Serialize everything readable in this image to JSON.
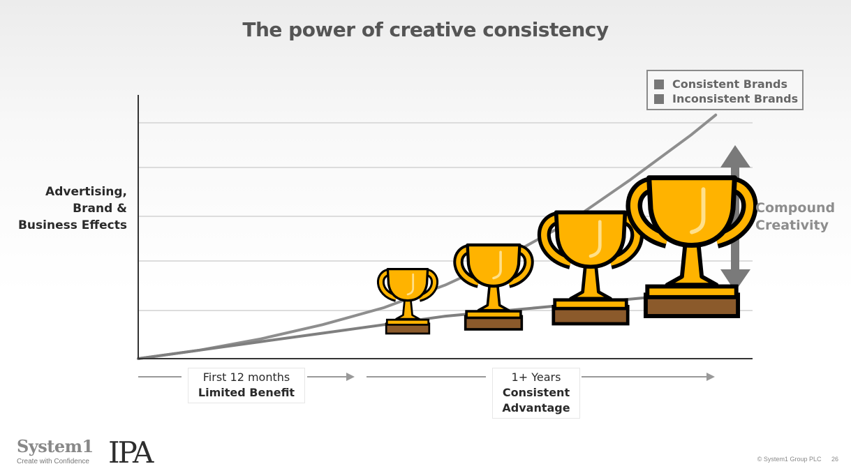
{
  "title": "The power of creative consistency",
  "ylabel_lines": [
    "Advertising,",
    "Brand &",
    "Business Effects"
  ],
  "legend": {
    "items": [
      "Consistent Brands",
      "Inconsistent Brands"
    ],
    "swatch_color": "#777777"
  },
  "annotation_lines": [
    "Compound",
    "Creativity"
  ],
  "phases": [
    {
      "line1": "First 12 months",
      "line2": "Limited Benefit"
    },
    {
      "line1": "1+ Years",
      "line2": "Consistent",
      "line3": "Advantage"
    }
  ],
  "trophy_icon": "trophy-icon",
  "trophy_count": 4,
  "colors": {
    "trophy_gold": "#FFB300",
    "trophy_base": "#8B5A2B",
    "line_gray": "#8a8a8a",
    "arrow_gray": "#7a7a7a"
  },
  "logos": {
    "system1_name": "System1",
    "system1_tagline": "Create with Confidence",
    "ipa": "IPA"
  },
  "footer": {
    "copyright": "© System1 Group PLC",
    "page": "26"
  },
  "chart_data": {
    "type": "line",
    "title": "The power of creative consistency",
    "ylabel": "Advertising, Brand & Business Effects",
    "xlabel": "",
    "grid": true,
    "legend_position": "top-right",
    "series": [
      {
        "name": "Consistent Brands",
        "x": [
          0,
          0.1,
          0.2,
          0.3,
          0.4,
          0.5,
          0.6,
          0.7,
          0.8,
          0.9,
          0.94
        ],
        "y": [
          0,
          0.03,
          0.07,
          0.12,
          0.18,
          0.26,
          0.36,
          0.48,
          0.63,
          0.79,
          0.86
        ]
      },
      {
        "name": "Inconsistent Brands",
        "x": [
          0,
          0.1,
          0.2,
          0.3,
          0.4,
          0.5,
          0.6,
          0.7,
          0.8,
          0.9,
          0.94
        ],
        "y": [
          0,
          0.03,
          0.06,
          0.09,
          0.12,
          0.15,
          0.17,
          0.19,
          0.21,
          0.23,
          0.24
        ]
      }
    ]
  }
}
